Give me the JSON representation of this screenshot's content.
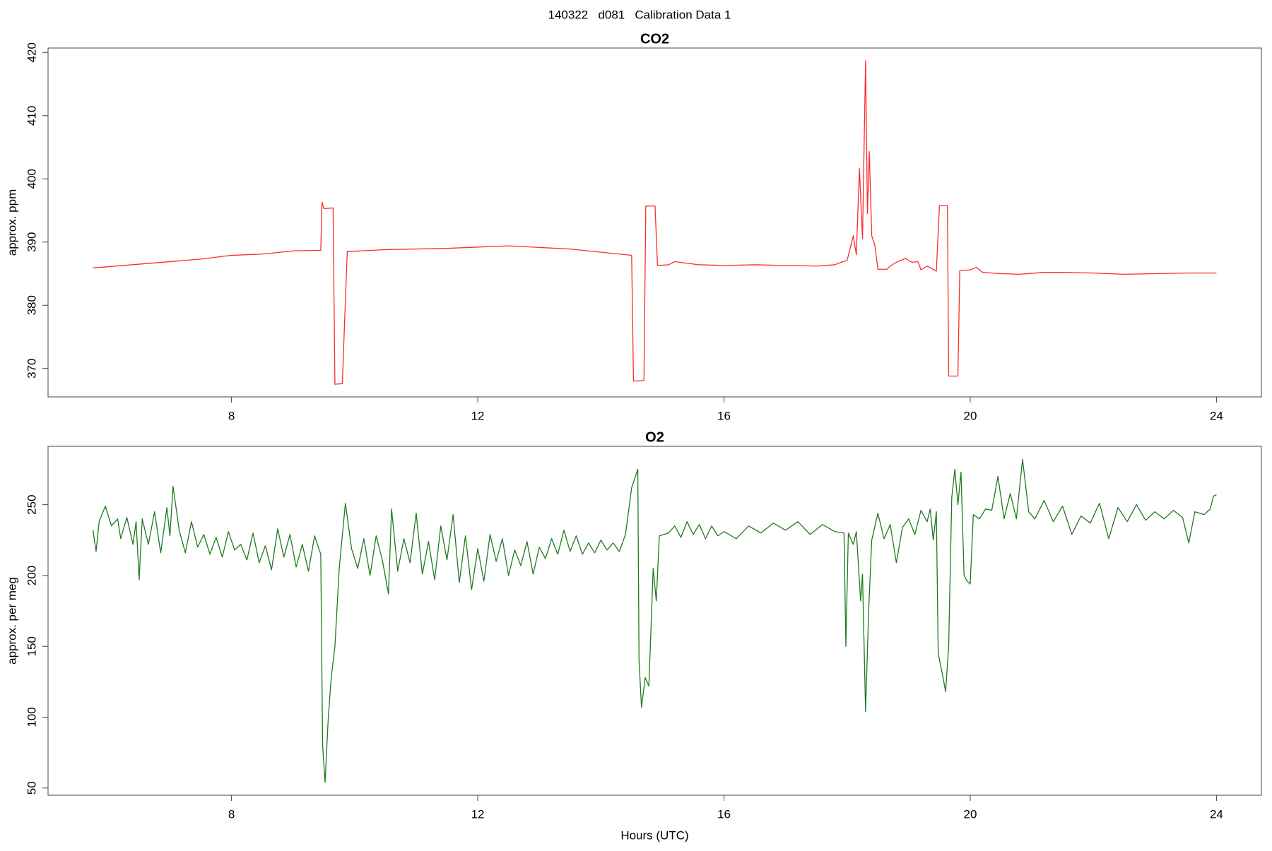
{
  "title": "140322   d081   Calibration Data 1",
  "chart_data": [
    {
      "type": "line",
      "title": "CO2",
      "y_label": "approx. ppm",
      "color": "#ff2a2a",
      "xlim": [
        5.02,
        24.73
      ],
      "xticks": [
        8,
        12,
        16,
        20,
        24
      ],
      "ylim": [
        365.5,
        420.7
      ],
      "yticks": [
        370,
        380,
        390,
        400,
        410,
        420
      ],
      "x": [
        5.75,
        6.5,
        7.5,
        8,
        8.5,
        9,
        9.45,
        9.47,
        9.5,
        9.65,
        9.68,
        9.8,
        9.88,
        10.5,
        11.5,
        12.5,
        13.5,
        14.5,
        14.53,
        14.7,
        14.73,
        14.88,
        14.92,
        15.1,
        15.2,
        15.6,
        16,
        16.5,
        17,
        17.5,
        17.8,
        17.9,
        18.0,
        18.1,
        18.15,
        18.2,
        18.25,
        18.3,
        18.33,
        18.36,
        18.4,
        18.45,
        18.5,
        18.65,
        18.7,
        18.8,
        18.95,
        19.05,
        19.15,
        19.2,
        19.3,
        19.45,
        19.5,
        19.63,
        19.65,
        19.8,
        19.83,
        20.0,
        20.1,
        20.2,
        20.5,
        20.8,
        21.2,
        21.5,
        22,
        22.5,
        23,
        23.5,
        24
      ],
      "values": [
        385.9,
        386.5,
        387.3,
        387.9,
        388.1,
        388.6,
        388.7,
        396.3,
        395.3,
        395.4,
        367.5,
        367.6,
        388.5,
        388.8,
        389.0,
        389.4,
        388.9,
        387.9,
        368.0,
        368.1,
        395.7,
        395.7,
        386.3,
        386.4,
        386.9,
        386.4,
        386.3,
        386.4,
        386.3,
        386.2,
        386.4,
        386.8,
        387.1,
        391.0,
        388.0,
        401.6,
        390.5,
        418.7,
        394.5,
        404.3,
        391.0,
        389.5,
        385.7,
        385.7,
        386.2,
        386.8,
        387.4,
        386.8,
        386.9,
        385.6,
        386.2,
        385.4,
        395.8,
        395.8,
        368.8,
        368.8,
        385.5,
        385.6,
        386.0,
        385.2,
        385.0,
        384.9,
        385.2,
        385.2,
        385.1,
        384.9,
        385.0,
        385.1,
        385.1
      ]
    },
    {
      "type": "line",
      "title": "O2",
      "y_label": "approx. per meg",
      "x_label": "Hours (UTC)",
      "color": "#1e7a1e",
      "xlim": [
        5.02,
        24.73
      ],
      "xticks": [
        8,
        12,
        16,
        20,
        24
      ],
      "ylim": [
        44.9,
        291.2
      ],
      "yticks": [
        50,
        100,
        150,
        200,
        250
      ],
      "x": [
        5.75,
        5.8,
        5.85,
        5.95,
        6.05,
        6.15,
        6.2,
        6.3,
        6.4,
        6.45,
        6.5,
        6.55,
        6.65,
        6.75,
        6.85,
        6.95,
        7.0,
        7.05,
        7.15,
        7.25,
        7.35,
        7.45,
        7.55,
        7.65,
        7.75,
        7.85,
        7.95,
        8.05,
        8.15,
        8.25,
        8.35,
        8.45,
        8.55,
        8.65,
        8.75,
        8.85,
        8.95,
        9.05,
        9.15,
        9.25,
        9.35,
        9.45,
        9.48,
        9.52,
        9.57,
        9.62,
        9.68,
        9.75,
        9.85,
        9.95,
        10.05,
        10.15,
        10.25,
        10.35,
        10.45,
        10.55,
        10.6,
        10.7,
        10.8,
        10.9,
        11.0,
        11.1,
        11.2,
        11.3,
        11.4,
        11.5,
        11.6,
        11.7,
        11.8,
        11.9,
        12.0,
        12.1,
        12.2,
        12.3,
        12.4,
        12.5,
        12.6,
        12.7,
        12.8,
        12.9,
        13.0,
        13.1,
        13.2,
        13.3,
        13.4,
        13.5,
        13.6,
        13.7,
        13.8,
        13.9,
        14.0,
        14.1,
        14.2,
        14.3,
        14.4,
        14.5,
        14.6,
        14.62,
        14.66,
        14.72,
        14.78,
        14.85,
        14.9,
        14.95,
        15.1,
        15.2,
        15.3,
        15.4,
        15.5,
        15.6,
        15.7,
        15.8,
        15.9,
        16.0,
        16.2,
        16.4,
        16.6,
        16.8,
        17.0,
        17.2,
        17.4,
        17.6,
        17.8,
        17.95,
        17.98,
        18.02,
        18.1,
        18.15,
        18.22,
        18.25,
        18.3,
        18.35,
        18.4,
        18.5,
        18.6,
        18.7,
        18.8,
        18.9,
        19.0,
        19.1,
        19.2,
        19.3,
        19.35,
        19.4,
        19.45,
        19.48,
        19.55,
        19.6,
        19.65,
        19.7,
        19.75,
        19.8,
        19.85,
        19.9,
        19.95,
        20.0,
        20.05,
        20.15,
        20.25,
        20.35,
        20.45,
        20.55,
        20.65,
        20.75,
        20.85,
        20.95,
        21.05,
        21.2,
        21.35,
        21.5,
        21.65,
        21.8,
        21.95,
        22.1,
        22.25,
        22.4,
        22.55,
        22.7,
        22.85,
        23.0,
        23.15,
        23.3,
        23.45,
        23.55,
        23.65,
        23.8,
        23.9,
        23.95,
        24.0
      ],
      "values": [
        232,
        217,
        238,
        249,
        235,
        240,
        226,
        241,
        222,
        238,
        197,
        240,
        222,
        245,
        216,
        248,
        228,
        263,
        232,
        216,
        238,
        220,
        229,
        215,
        227,
        213,
        231,
        218,
        222,
        211,
        230,
        209,
        221,
        204,
        233,
        213,
        229,
        206,
        222,
        203,
        228,
        215,
        80,
        54,
        98,
        128,
        150,
        205,
        251,
        219,
        205,
        226,
        200,
        228,
        211,
        187,
        247,
        203,
        226,
        209,
        244,
        201,
        224,
        197,
        235,
        211,
        243,
        195,
        228,
        190,
        219,
        196,
        229,
        210,
        226,
        200,
        218,
        207,
        224,
        201,
        220,
        212,
        226,
        215,
        232,
        217,
        228,
        215,
        223,
        216,
        225,
        218,
        223,
        217,
        229,
        262,
        275,
        140,
        107,
        128,
        122,
        205,
        182,
        228,
        230,
        235,
        227,
        238,
        229,
        236,
        226,
        235,
        228,
        231,
        226,
        235,
        230,
        237,
        232,
        238,
        229,
        236,
        231,
        230,
        150,
        230,
        222,
        231,
        182,
        201,
        104,
        175,
        225,
        244,
        226,
        236,
        209,
        234,
        240,
        229,
        246,
        238,
        247,
        225,
        245,
        145,
        130,
        118,
        150,
        255,
        275,
        250,
        273,
        200,
        196,
        194,
        243,
        240,
        247,
        246,
        270,
        240,
        258,
        240,
        282,
        245,
        240,
        253,
        238,
        249,
        229,
        242,
        237,
        251,
        226,
        248,
        238,
        250,
        239,
        245,
        240,
        246,
        241,
        223,
        245,
        243,
        247,
        256,
        257
      ]
    }
  ]
}
